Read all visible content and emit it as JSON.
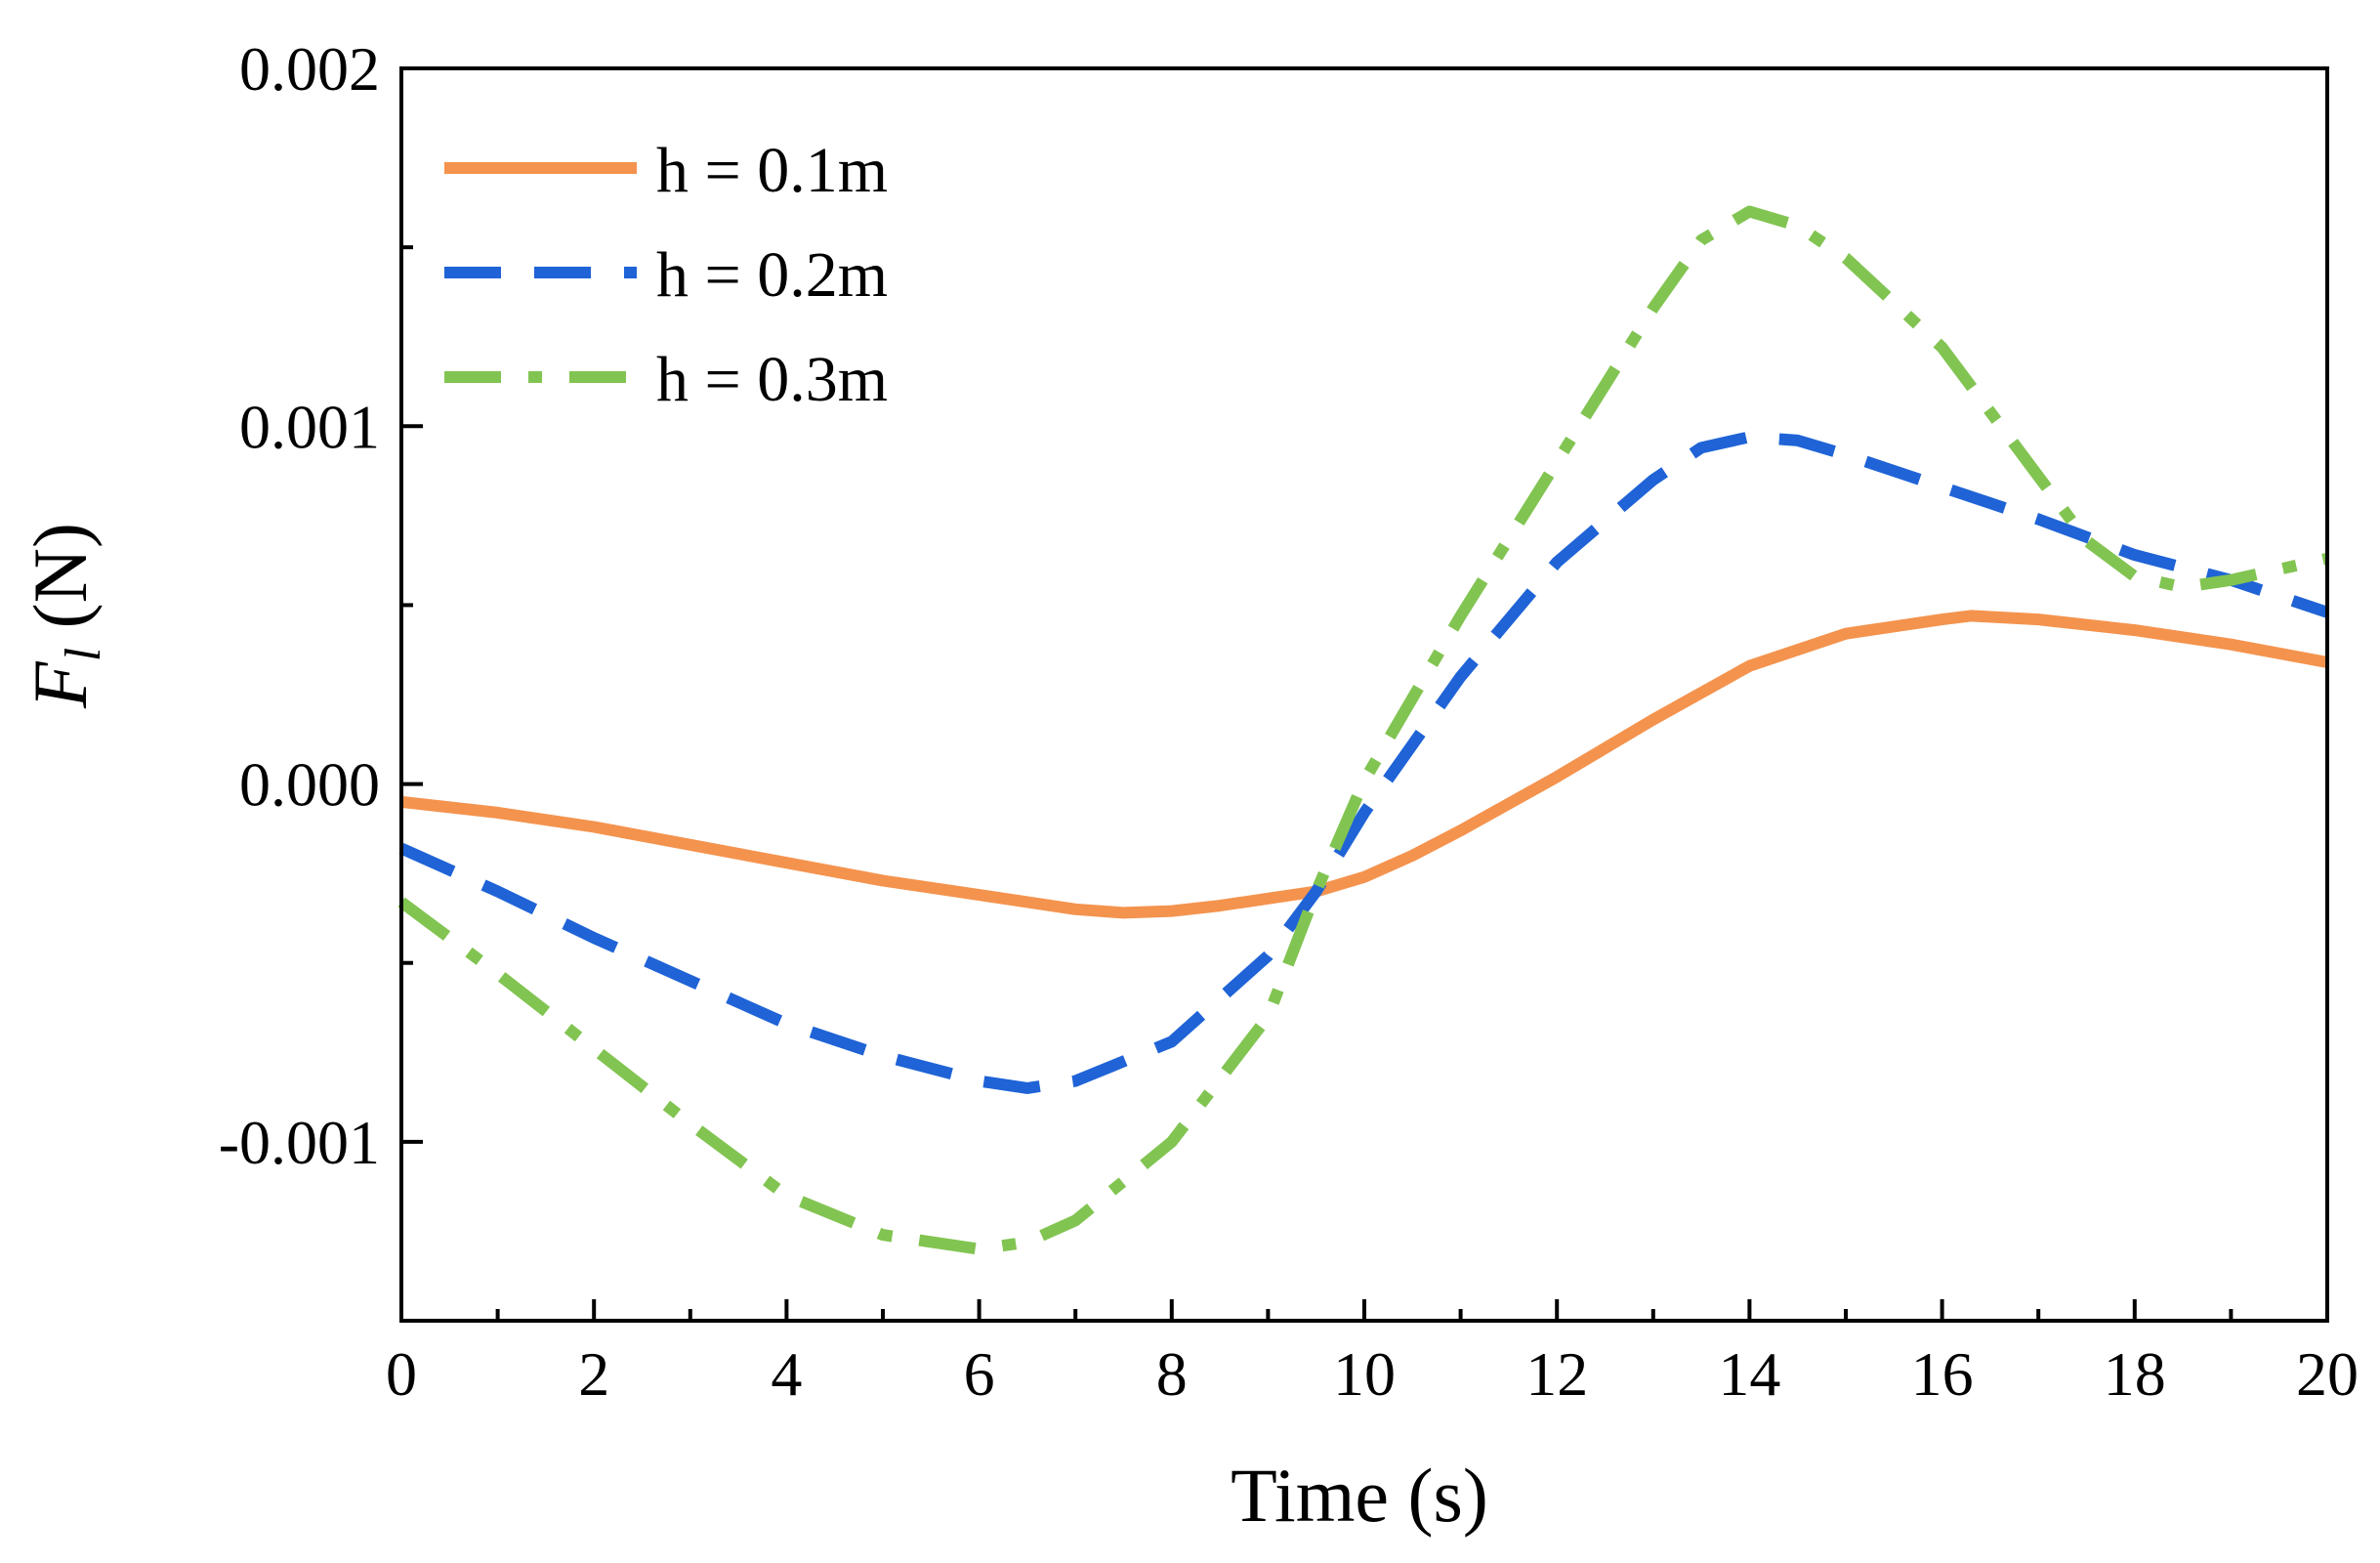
{
  "chart_data": {
    "type": "line",
    "title": "",
    "xlabel": "Time (s)",
    "ylabel_main": "F",
    "ylabel_sub": "l",
    "ylabel_unit": " (N)",
    "xlim": [
      0,
      20
    ],
    "ylim": [
      -0.0015,
      0.002
    ],
    "xticks": [
      0,
      2,
      4,
      6,
      8,
      10,
      12,
      14,
      16,
      18,
      20
    ],
    "xtick_labels": [
      "0",
      "2",
      "4",
      "6",
      "8",
      "10",
      "12",
      "14",
      "16",
      "18",
      "20"
    ],
    "yticks": [
      -0.001,
      0,
      0.001,
      0.002
    ],
    "ytick_labels": [
      "-0.001",
      "0.000",
      "0.001",
      "0.002"
    ],
    "grid": false,
    "legend_position": "top-left",
    "series": [
      {
        "name": "h = 0.1m",
        "color": "#F4934E",
        "dash": "solid",
        "x": [
          0,
          1,
          2,
          3,
          4,
          5,
          6,
          7,
          7.5,
          8,
          8.5,
          9,
          9.5,
          10,
          10.5,
          11,
          12,
          13,
          14,
          15,
          16,
          16.3,
          17,
          18,
          19,
          20
        ],
        "y": [
          -5e-05,
          -8e-05,
          -0.00012,
          -0.00017,
          -0.00022,
          -0.00027,
          -0.00031,
          -0.00035,
          -0.00036,
          -0.000355,
          -0.00034,
          -0.00032,
          -0.0003,
          -0.00026,
          -0.0002,
          -0.00013,
          2e-05,
          0.00018,
          0.00033,
          0.00042,
          0.00046,
          0.00047,
          0.00046,
          0.00043,
          0.00039,
          0.00034
        ]
      },
      {
        "name": "h = 0.2m",
        "color": "#1F63D6",
        "dash": "dashed",
        "x": [
          0,
          1,
          2,
          3,
          4,
          5,
          6,
          6.5,
          7,
          8,
          9,
          9.5,
          10,
          11,
          12,
          13,
          13.5,
          14,
          14.5,
          15,
          16,
          17,
          17.5,
          18,
          19,
          20
        ],
        "y": [
          -0.00018,
          -0.0003,
          -0.00043,
          -0.00055,
          -0.00067,
          -0.00076,
          -0.00083,
          -0.00085,
          -0.00083,
          -0.00072,
          -0.00048,
          -0.0003,
          -8e-05,
          0.0003,
          0.00062,
          0.00085,
          0.00094,
          0.00097,
          0.00096,
          0.00092,
          0.00083,
          0.00074,
          0.00069,
          0.00064,
          0.00057,
          0.00048
        ]
      },
      {
        "name": "h = 0.3m",
        "color": "#82C452",
        "dash": "dashdot",
        "x": [
          0,
          1,
          2,
          3,
          4,
          5,
          6,
          6.5,
          7,
          8,
          9,
          9.5,
          10,
          11,
          12,
          13,
          13.5,
          14,
          14.5,
          15,
          16,
          17,
          17.5,
          18,
          18.5,
          19,
          20
        ],
        "y": [
          -0.00033,
          -0.00053,
          -0.00074,
          -0.00095,
          -0.00115,
          -0.00126,
          -0.0013,
          -0.00128,
          -0.00122,
          -0.001,
          -0.00065,
          -0.0003,
          1e-05,
          0.00047,
          0.0009,
          0.00133,
          0.00152,
          0.0016,
          0.00156,
          0.00147,
          0.00122,
          0.00086,
          0.00068,
          0.00058,
          0.00055,
          0.00057,
          0.00063
        ]
      }
    ]
  }
}
